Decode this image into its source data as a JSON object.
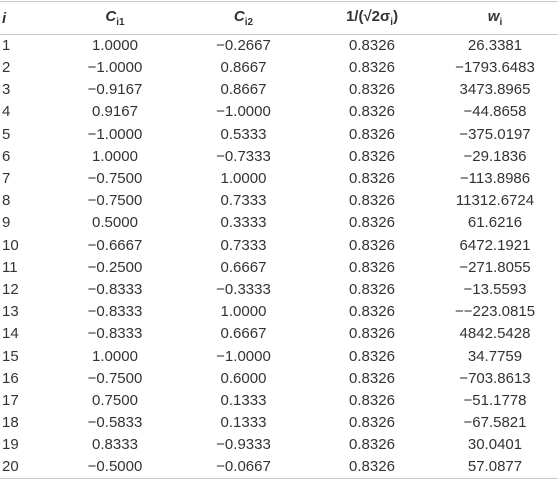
{
  "table": {
    "header": [
      {
        "text": "i"
      },
      {
        "text": "C",
        "sub": "i1"
      },
      {
        "text": "C",
        "sub": "i2"
      },
      {
        "text": "1/(√2σ",
        "sub": "i",
        "after": ")"
      },
      {
        "text": "w",
        "sub": "i"
      }
    ],
    "rows": [
      [
        "1",
        "1.0000",
        "−0.2667",
        "0.8326",
        "26.3381"
      ],
      [
        "2",
        "−1.0000",
        "0.8667",
        "0.8326",
        "−1793.6483"
      ],
      [
        "3",
        "−0.9167",
        "0.8667",
        "0.8326",
        "3473.8965"
      ],
      [
        "4",
        "0.9167",
        "−1.0000",
        "0.8326",
        "−44.8658"
      ],
      [
        "5",
        "−1.0000",
        "0.5333",
        "0.8326",
        "−375.0197"
      ],
      [
        "6",
        "1.0000",
        "−0.7333",
        "0.8326",
        "−29.1836"
      ],
      [
        "7",
        "−0.7500",
        "1.0000",
        "0.8326",
        "−113.8986"
      ],
      [
        "8",
        "−0.7500",
        "0.7333",
        "0.8326",
        "11312.6724"
      ],
      [
        "9",
        "0.5000",
        "0.3333",
        "0.8326",
        "61.6216"
      ],
      [
        "10",
        "−0.6667",
        "0.7333",
        "0.8326",
        "6472.1921"
      ],
      [
        "11",
        "−0.2500",
        "0.6667",
        "0.8326",
        "−271.8055"
      ],
      [
        "12",
        "−0.8333",
        "−0.3333",
        "0.8326",
        "−13.5593"
      ],
      [
        "13",
        "−0.8333",
        "1.0000",
        "0.8326",
        "−−223.0815"
      ],
      [
        "14",
        "−0.8333",
        "0.6667",
        "0.8326",
        "4842.5428"
      ],
      [
        "15",
        "1.0000",
        "−1.0000",
        "0.8326",
        "34.7759"
      ],
      [
        "16",
        "−0.7500",
        "0.6000",
        "0.8326",
        "−703.8613"
      ],
      [
        "17",
        "0.7500",
        "0.1333",
        "0.8326",
        "−51.1778"
      ],
      [
        "18",
        "−0.5833",
        "0.1333",
        "0.8326",
        "−67.5821"
      ],
      [
        "19",
        "0.8333",
        "−0.9333",
        "0.8326",
        "30.0401"
      ],
      [
        "20",
        "−0.5000",
        "−0.0667",
        "0.8326",
        "57.0877"
      ]
    ]
  }
}
